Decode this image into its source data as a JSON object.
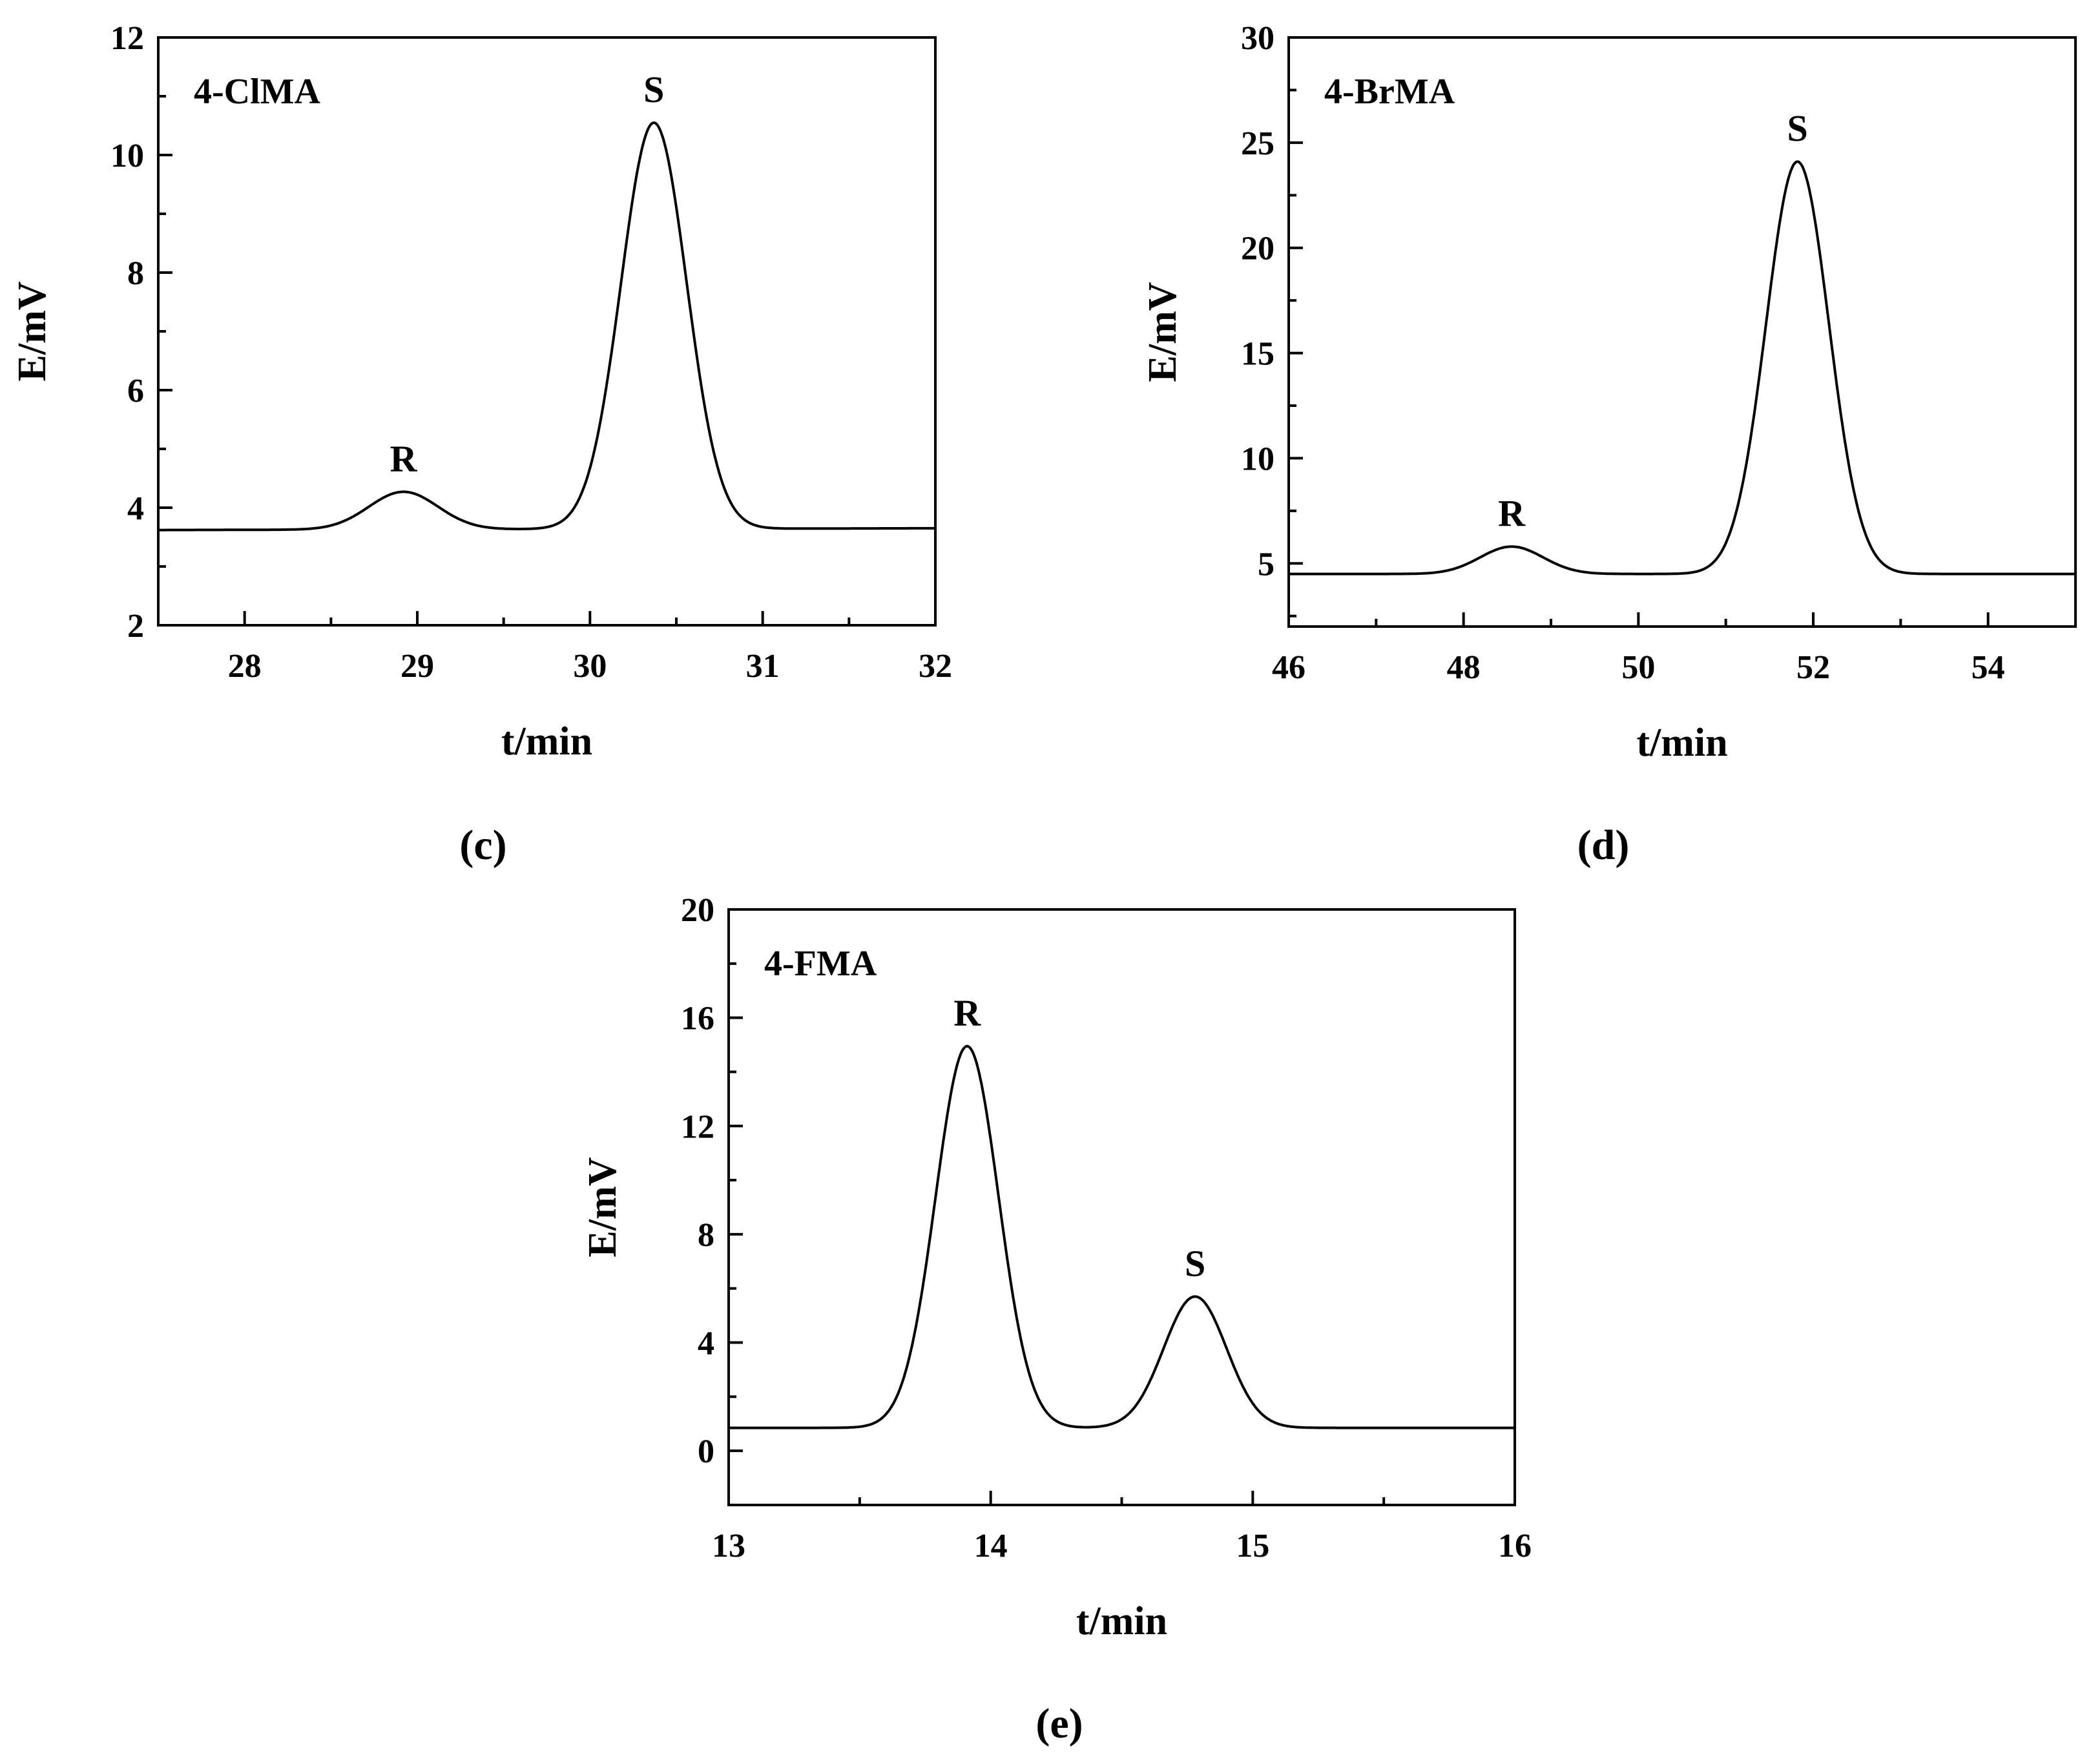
{
  "chart_data": [
    {
      "id": "c",
      "type": "line",
      "panel_label": "(c)",
      "compound": "4-ClMA",
      "xlabel": "t/min",
      "ylabel": "E/mV",
      "xlim": [
        27.5,
        32
      ],
      "ylim": [
        2,
        12
      ],
      "xticks": [
        28,
        29,
        30,
        31,
        32
      ],
      "yticks": [
        2,
        4,
        6,
        8,
        10,
        12
      ],
      "xminor": 0.5,
      "yminor": 1,
      "baseline": [
        {
          "x": 27.5,
          "y": 3.62
        },
        {
          "x": 32,
          "y": 3.65
        }
      ],
      "peaks": [
        {
          "label": "R",
          "t": 28.92,
          "height": 4.27,
          "sigma": 0.2
        },
        {
          "label": "S",
          "t": 30.37,
          "height": 10.55,
          "sigma": 0.19
        }
      ]
    },
    {
      "id": "d",
      "type": "line",
      "panel_label": "(d)",
      "compound": "4-BrMA",
      "xlabel": "t/min",
      "ylabel": "E/mV",
      "xlim": [
        46,
        55
      ],
      "ylim": [
        2,
        30
      ],
      "xticks": [
        46,
        48,
        50,
        52,
        54
      ],
      "yticks": [
        5,
        10,
        15,
        20,
        25,
        30
      ],
      "xminor": 1,
      "yminor": 2.5,
      "baseline": [
        {
          "x": 46,
          "y": 4.5
        },
        {
          "x": 55,
          "y": 4.5
        }
      ],
      "peaks": [
        {
          "label": "R",
          "t": 48.55,
          "height": 5.8,
          "sigma": 0.36
        },
        {
          "label": "S",
          "t": 51.82,
          "height": 24.1,
          "sigma": 0.36
        }
      ]
    },
    {
      "id": "e",
      "type": "line",
      "panel_label": "(e)",
      "compound": "4-FMA",
      "xlabel": "t/min",
      "ylabel": "E/mV",
      "xlim": [
        13,
        16
      ],
      "ylim": [
        -2,
        20
      ],
      "xticks": [
        13,
        14,
        15,
        16
      ],
      "yticks": [
        0,
        4,
        8,
        12,
        16,
        20
      ],
      "xminor": 0.5,
      "yminor": 2,
      "baseline": [
        {
          "x": 13,
          "y": 0.85
        },
        {
          "x": 16,
          "y": 0.85
        }
      ],
      "peaks": [
        {
          "label": "R",
          "t": 13.91,
          "height": 14.95,
          "sigma": 0.12
        },
        {
          "label": "S",
          "t": 14.78,
          "height": 5.7,
          "sigma": 0.12
        }
      ]
    }
  ]
}
